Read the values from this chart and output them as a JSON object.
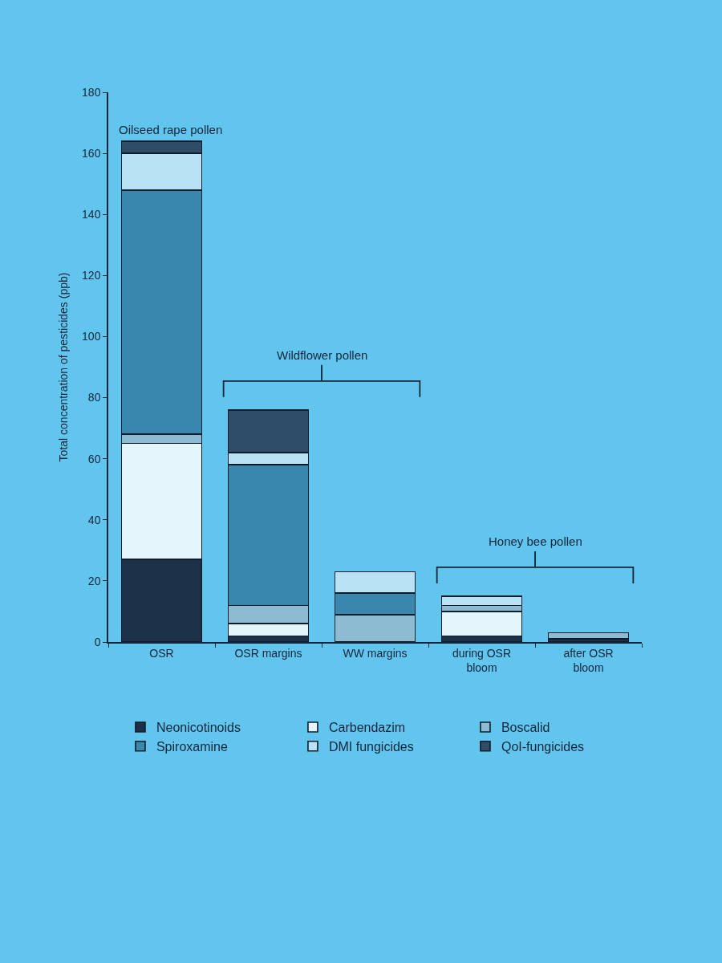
{
  "chart_data": {
    "type": "bar",
    "stacked": true,
    "ylabel": "Total concentration of pesticides (ppb)",
    "categories": [
      "OSR",
      "OSR margins",
      "WW margins",
      "during OSR\nbloom",
      "after OSR\nbloom"
    ],
    "series": [
      {
        "name": "Neonicotinoids",
        "color": "#1c3048",
        "values": [
          27,
          2,
          null,
          2,
          1
        ]
      },
      {
        "name": "Carbendazim",
        "color": "#e4f5fc",
        "values": [
          38,
          4,
          null,
          8,
          null
        ]
      },
      {
        "name": "Boscalid",
        "color": "#8dbcd2",
        "values": [
          3,
          6,
          9,
          2,
          2
        ]
      },
      {
        "name": "Spiroxamine",
        "color": "#3a87ad",
        "values": [
          80,
          46,
          7,
          null,
          null
        ]
      },
      {
        "name": "DMI fungicides",
        "color": "#b9e3f4",
        "values": [
          12,
          4,
          7,
          3,
          null
        ]
      },
      {
        "name": "QoI-fungicides",
        "color": "#2f4d68",
        "values": [
          4,
          14,
          null,
          null,
          null
        ]
      }
    ],
    "ylim": [
      0,
      180
    ],
    "yticks": [
      0,
      20,
      40,
      60,
      80,
      100,
      120,
      140,
      160,
      180
    ],
    "annotations": [
      "Oilseed rape pollen",
      "Wildflower pollen",
      "Honey bee pollen"
    ],
    "legend": "bottom",
    "grid": false
  }
}
